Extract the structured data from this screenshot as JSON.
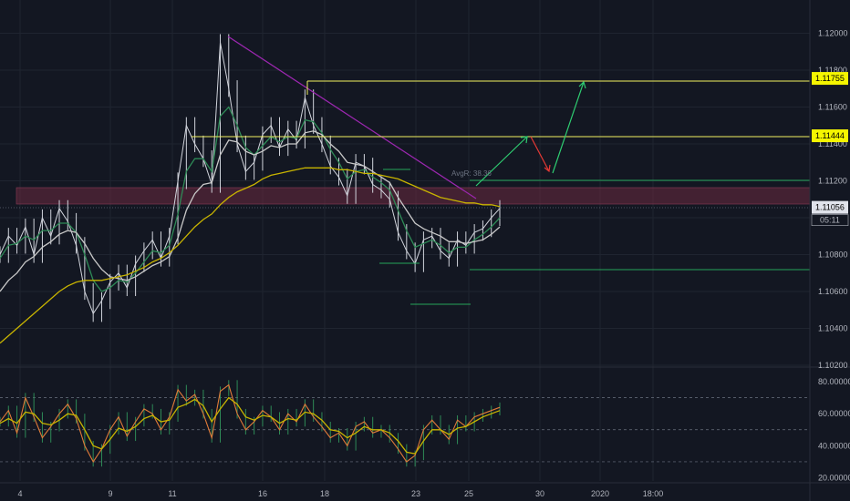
{
  "colors": {
    "background": "#131722",
    "grid": "#1f2430",
    "candle": "#d1d4dc",
    "ema_fast": "#2e8b57",
    "ma_white": "#c8c8c8",
    "ma_yellow": "#c8b400",
    "trendline": "#9c27b0",
    "level_yellow": "#f0f060",
    "level_green": "#26a65b",
    "arrow_green": "#2ecc71",
    "arrow_red": "#e53935",
    "zone_fill": "#6b2a3f",
    "osc_main": "#e07b39",
    "osc_signal": "#c8b400",
    "osc_green": "#2e8b57",
    "tag_yellow": "#f5f500",
    "tag_white": "#e0e3eb"
  },
  "chart_data": [
    {
      "type": "line",
      "title": "",
      "xlabel": "",
      "ylabel": "",
      "x_ticks": [
        "4",
        "9",
        "11",
        "16",
        "18",
        "23",
        "25",
        "30",
        "2020",
        "18:00"
      ],
      "y_ticks": [
        "1.12000",
        "1.11800",
        "1.11600",
        "1.11400",
        "1.11200",
        "1.11000",
        "1.10800",
        "1.10600",
        "1.10400",
        "1.10200"
      ],
      "ylim": [
        1.1019,
        1.1218
      ],
      "grid": true,
      "price_tags": [
        {
          "label": "1.11755",
          "value": 1.11755,
          "style": "yellow"
        },
        {
          "label": "1.11444",
          "value": 1.11444,
          "style": "yellow"
        },
        {
          "label": "1.11056",
          "value": 1.11056,
          "style": "white"
        }
      ],
      "countdown_label": "05:11",
      "series": [
        {
          "values": [
            1.108,
            1.109,
            1.1085,
            1.1095,
            1.108,
            1.11,
            1.109,
            1.1105,
            1.1098,
            1.1085,
            1.106,
            1.1048,
            1.1055,
            1.1065,
            1.107,
            1.1062,
            1.1075,
            1.1082,
            1.1088,
            1.1078,
            1.109,
            1.112,
            1.115,
            1.114,
            1.1132,
            1.1118,
            1.1195,
            1.117,
            1.114,
            1.1125,
            1.113,
            1.1145,
            1.115,
            1.1138,
            1.1148,
            1.1142,
            1.1165,
            1.115,
            1.114,
            1.1128,
            1.1122,
            1.1112,
            1.113,
            1.1128,
            1.1118,
            1.1115,
            1.111,
            1.1092,
            1.1082,
            1.1075,
            1.1088,
            1.109,
            1.1082,
            1.1078,
            1.1088,
            1.1085,
            1.1092,
            1.1094,
            1.11,
            1.1105
          ]
        },
        {
          "values": [
            1.1078,
            1.1085,
            1.1086,
            1.109,
            1.1088,
            1.1093,
            1.1093,
            1.1097,
            1.1097,
            1.1092,
            1.108,
            1.1066,
            1.106,
            1.1062,
            1.1066,
            1.1065,
            1.107,
            1.1076,
            1.1082,
            1.1081,
            1.1085,
            1.1102,
            1.1125,
            1.1132,
            1.1132,
            1.1125,
            1.1155,
            1.116,
            1.115,
            1.1138,
            1.1134,
            1.1139,
            1.1144,
            1.1141,
            1.1144,
            1.1143,
            1.1153,
            1.1152,
            1.1146,
            1.1137,
            1.113,
            1.1121,
            1.1125,
            1.1126,
            1.1122,
            1.1119,
            1.1115,
            1.1104,
            1.1093,
            1.1084,
            1.1086,
            1.1088,
            1.1085,
            1.1081,
            1.1084,
            1.1084,
            1.1088,
            1.1091,
            1.1095,
            1.11
          ]
        },
        {
          "values": [
            1.106,
            1.1066,
            1.107,
            1.1076,
            1.1079,
            1.1084,
            1.1087,
            1.1091,
            1.1093,
            1.1092,
            1.1086,
            1.1078,
            1.1072,
            1.1068,
            1.1067,
            1.1066,
            1.1068,
            1.1071,
            1.1074,
            1.1076,
            1.1079,
            1.1089,
            1.1104,
            1.1113,
            1.1118,
            1.1119,
            1.1134,
            1.1142,
            1.1141,
            1.1136,
            1.1134,
            1.1136,
            1.1139,
            1.1138,
            1.114,
            1.114,
            1.1146,
            1.1147,
            1.1145,
            1.114,
            1.1136,
            1.113,
            1.1129,
            1.1128,
            1.1125,
            1.1122,
            1.1119,
            1.1111,
            1.1104,
            1.1097,
            1.1094,
            1.1092,
            1.109,
            1.1087,
            1.1087,
            1.1086,
            1.1087,
            1.1088,
            1.1091,
            1.1095
          ]
        },
        {
          "values": [
            1.1032,
            1.1036,
            1.104,
            1.1044,
            1.1048,
            1.1052,
            1.1056,
            1.106,
            1.1063,
            1.1065,
            1.1066,
            1.1066,
            1.1066,
            1.1067,
            1.1068,
            1.1069,
            1.1071,
            1.1073,
            1.1076,
            1.1078,
            1.1081,
            1.1085,
            1.109,
            1.1095,
            1.1099,
            1.1102,
            1.1107,
            1.1111,
            1.1114,
            1.1116,
            1.1118,
            1.1121,
            1.1123,
            1.1124,
            1.1125,
            1.1126,
            1.1127,
            1.1127,
            1.1127,
            1.1127,
            1.1126,
            1.1126,
            1.1125,
            1.1124,
            1.1124,
            1.1123,
            1.1122,
            1.1121,
            1.1119,
            1.1117,
            1.1115,
            1.1113,
            1.1111,
            1.111,
            1.1109,
            1.1108,
            1.1108,
            1.1107,
            1.1107,
            1.1106
          ]
        }
      ]
    },
    {
      "type": "line",
      "title": "",
      "y_ticks": [
        "80.00000",
        "60.00000",
        "40.00000",
        "20.00000"
      ],
      "ylim": [
        18,
        88
      ],
      "grid": true,
      "series": [
        {
          "values": [
            55,
            62,
            48,
            70,
            58,
            45,
            52,
            60,
            66,
            57,
            40,
            30,
            38,
            50,
            58,
            46,
            55,
            63,
            60,
            50,
            58,
            75,
            68,
            72,
            60,
            45,
            74,
            78,
            60,
            50,
            55,
            62,
            58,
            50,
            60,
            55,
            66,
            58,
            52,
            45,
            48,
            40,
            52,
            55,
            48,
            50,
            45,
            38,
            30,
            34,
            50,
            56,
            50,
            44,
            56,
            52,
            58,
            60,
            62,
            64
          ]
        },
        {
          "values": [
            54,
            57,
            54,
            61,
            60,
            54,
            53,
            56,
            60,
            59,
            50,
            40,
            38,
            44,
            51,
            49,
            52,
            57,
            59,
            55,
            56,
            64,
            66,
            69,
            65,
            55,
            63,
            70,
            66,
            58,
            56,
            59,
            58,
            54,
            57,
            56,
            61,
            60,
            56,
            50,
            49,
            45,
            48,
            52,
            50,
            50,
            48,
            43,
            36,
            35,
            43,
            50,
            50,
            47,
            51,
            52,
            55,
            58,
            60,
            62
          ]
        }
      ]
    }
  ]
}
